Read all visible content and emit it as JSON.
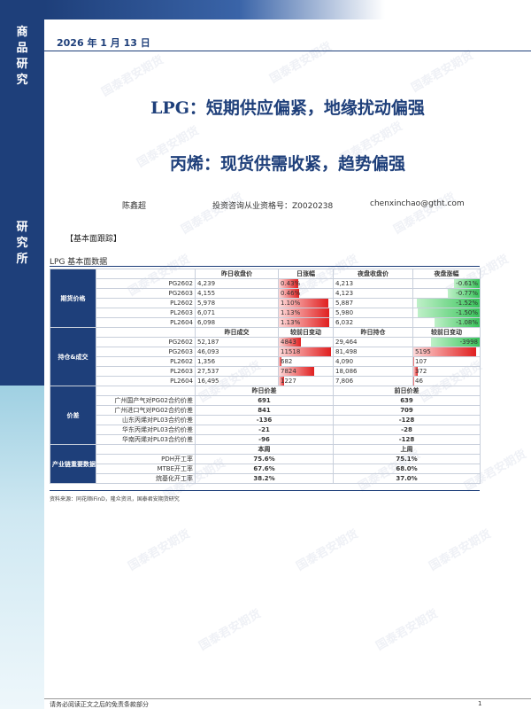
{
  "sidebar": {
    "top_label": "商品研究",
    "mid_label": "研究所"
  },
  "header": {
    "date": "2026 年 1 月 13 日"
  },
  "titles": {
    "main": "LPG：短期供应偏紧，地缘扰动偏强",
    "sub": "丙烯：现货供需收紧，趋势偏强"
  },
  "meta": {
    "author": "陈鑫超",
    "license": "投资咨询从业资格号：Z0020238",
    "email": "chenxinchao@gtht.com"
  },
  "section_label": "【基本面跟踪】",
  "table_caption": "LPG 基本面数据",
  "table": {
    "futures": {
      "group": "期货价格",
      "headers": [
        "昨日收盘价",
        "日涨幅",
        "夜盘收盘价",
        "夜盘涨幅"
      ],
      "rows": [
        {
          "name": "PG2602",
          "close": "4,239",
          "chg": "0.43%",
          "night": "4,213",
          "night_chg": "-0.61%",
          "chg_v": 0.43,
          "night_v": -0.61
        },
        {
          "name": "PG2603",
          "close": "4,155",
          "chg": "0.46%",
          "night": "4,123",
          "night_chg": "-0.77%",
          "chg_v": 0.46,
          "night_v": -0.77
        },
        {
          "name": "PL2602",
          "close": "5,978",
          "chg": "1.10%",
          "night": "5,887",
          "night_chg": "-1.52%",
          "chg_v": 1.1,
          "night_v": -1.52
        },
        {
          "name": "PL2603",
          "close": "6,071",
          "chg": "1.13%",
          "night": "5,980",
          "night_chg": "-1.50%",
          "chg_v": 1.13,
          "night_v": -1.5
        },
        {
          "name": "PL2604",
          "close": "6,098",
          "chg": "1.13%",
          "night": "6,032",
          "night_chg": "-1.08%",
          "chg_v": 1.13,
          "night_v": -1.08
        }
      ]
    },
    "positions": {
      "group": "持仓&成交",
      "headers": [
        "昨日成交",
        "较前日变动",
        "昨日持仓",
        "较前日变动"
      ],
      "rows": [
        {
          "name": "PG2602",
          "vol": "52,187",
          "vol_chg": "4843",
          "oi": "29,464",
          "oi_chg": "-3998",
          "vol_v": 4843,
          "oi_v": -3998
        },
        {
          "name": "PG2603",
          "vol": "46,093",
          "vol_chg": "11518",
          "oi": "81,498",
          "oi_chg": "5195",
          "vol_v": 11518,
          "oi_v": 5195
        },
        {
          "name": "PL2602",
          "vol": "1,356",
          "vol_chg": "682",
          "oi": "4,090",
          "oi_chg": "107",
          "vol_v": 682,
          "oi_v": 107
        },
        {
          "name": "PL2603",
          "vol": "27,537",
          "vol_chg": "7824",
          "oi": "18,086",
          "oi_chg": "372",
          "vol_v": 7824,
          "oi_v": 372
        },
        {
          "name": "PL2604",
          "vol": "16,495",
          "vol_chg": "1227",
          "oi": "7,806",
          "oi_chg": "46",
          "vol_v": 1227,
          "oi_v": 46
        }
      ]
    },
    "spreads": {
      "group": "价差",
      "headers": [
        "昨日价差",
        "前日价差"
      ],
      "rows": [
        {
          "name": "广州国产气对PG02合约价差",
          "y": "691",
          "p": "639"
        },
        {
          "name": "广州进口气对PG02合约价差",
          "y": "841",
          "p": "709"
        },
        {
          "name": "山东丙烯对PL03合约价差",
          "y": "-136",
          "p": "-128"
        },
        {
          "name": "华东丙烯对PL03合约价差",
          "y": "-21",
          "p": "-28"
        },
        {
          "name": "华南丙烯对PL03合约价差",
          "y": "-96",
          "p": "-128"
        }
      ]
    },
    "industry": {
      "group": "产业链重要数据",
      "headers": [
        "本周",
        "上周"
      ],
      "rows": [
        {
          "name": "PDH开工率",
          "t": "75.6%",
          "l": "75.1%"
        },
        {
          "name": "MTBE开工率",
          "t": "67.6%",
          "l": "68.0%"
        },
        {
          "name": "烷基化开工率",
          "t": "38.2%",
          "l": "37.0%"
        }
      ]
    }
  },
  "source": "资料来源：同花顺iFinD，隆众资讯，国泰君安期货研究",
  "footer": {
    "disclaimer": "请务必阅读正文之后的免责条款部分",
    "page": "1"
  },
  "watermark_text": "国泰君安期货",
  "colors": {
    "brand": "#1e3f7a",
    "up": "#e02020",
    "down": "#38c45a"
  }
}
